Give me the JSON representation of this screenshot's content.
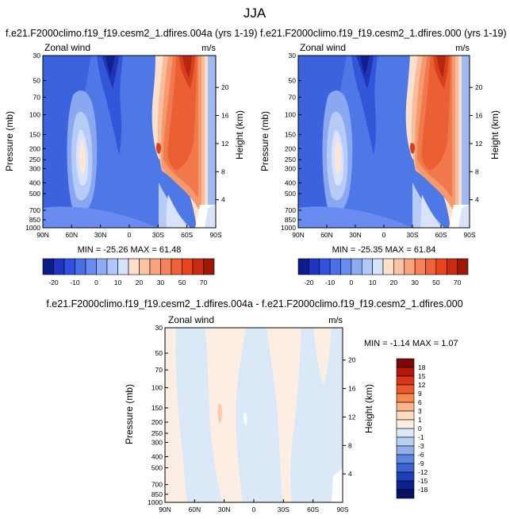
{
  "figure": {
    "title": "JJA",
    "variable": "Zonal wind",
    "units": "m/s",
    "ylabel_left": "Pressure (mb)",
    "ylabel_right": "Height (km)"
  },
  "chart_data": [
    {
      "type": "contour",
      "title": "f.e21.F2000climo.f19_f19.cesm2_1.dfires.004a (yrs 1-19)",
      "variable": "Zonal wind",
      "units": "m/s",
      "xlabel": "",
      "xticks": [
        "90N",
        "60N",
        "30N",
        "0",
        "30S",
        "60S",
        "90S"
      ],
      "xlim": [
        90,
        -90
      ],
      "yticks": [
        "30",
        "50",
        "70",
        "100",
        "150",
        "200",
        "250",
        "300",
        "400",
        "500",
        "700",
        "850",
        "1000"
      ],
      "ylim": [
        1000,
        30
      ],
      "height_ticks": [
        "4",
        "8",
        "12",
        "16",
        "20"
      ],
      "min": "-25.26",
      "max": "61.48",
      "min_label": "MIN = -25.26   MAX =  61.48",
      "levels": [
        -25,
        -20,
        -15,
        -10,
        -5,
        0,
        5,
        10,
        15,
        20,
        25,
        30,
        35,
        40,
        50,
        60,
        70
      ],
      "colorbar_labels": [
        "-20",
        "-10",
        "0",
        "10",
        "20",
        "30",
        "50",
        "70"
      ],
      "colors": [
        "#0d1a8a",
        "#1f35c2",
        "#3251e0",
        "#4a6fe8",
        "#6a8cf0",
        "#8eabf5",
        "#b3c8fa",
        "#d6e2fc",
        "#fde0cc",
        "#fbc4a6",
        "#f8a47f",
        "#f4825a",
        "#ee6138",
        "#e6461f",
        "#c92b10",
        "#a01605"
      ]
    },
    {
      "type": "contour",
      "title": "f.e21.F2000climo.f19_f19.cesm2_1.dfires.000 (yrs 1-19)",
      "variable": "Zonal wind",
      "units": "m/s",
      "xlabel": "",
      "xticks": [
        "90N",
        "60N",
        "30N",
        "0",
        "30S",
        "60S",
        "90S"
      ],
      "xlim": [
        90,
        -90
      ],
      "yticks": [
        "30",
        "50",
        "70",
        "100",
        "150",
        "200",
        "250",
        "300",
        "400",
        "500",
        "700",
        "850",
        "1000"
      ],
      "ylim": [
        1000,
        30
      ],
      "height_ticks": [
        "4",
        "8",
        "12",
        "16",
        "20"
      ],
      "min": "-25.35",
      "max": "61.84",
      "min_label": "MIN = -25.35   MAX =  61.84",
      "levels": [
        -25,
        -20,
        -15,
        -10,
        -5,
        0,
        5,
        10,
        15,
        20,
        25,
        30,
        35,
        40,
        50,
        60,
        70
      ],
      "colorbar_labels": [
        "-20",
        "-10",
        "0",
        "10",
        "20",
        "30",
        "50",
        "70"
      ],
      "colors": [
        "#0d1a8a",
        "#1f35c2",
        "#3251e0",
        "#4a6fe8",
        "#6a8cf0",
        "#8eabf5",
        "#b3c8fa",
        "#d6e2fc",
        "#fde0cc",
        "#fbc4a6",
        "#f8a47f",
        "#f4825a",
        "#ee6138",
        "#e6461f",
        "#c92b10",
        "#a01605"
      ]
    },
    {
      "type": "contour",
      "title": "f.e21.F2000climo.f19_f19.cesm2_1.dfires.004a - f.e21.F2000climo.f19_f19.cesm2_1.dfires.000",
      "variable": "Zonal wind",
      "units": "m/s",
      "xlabel": "",
      "xticks": [
        "90N",
        "60N",
        "30N",
        "0",
        "30S",
        "60S",
        "90S"
      ],
      "xlim": [
        90,
        -90
      ],
      "yticks": [
        "30",
        "50",
        "70",
        "100",
        "150",
        "200",
        "250",
        "300",
        "400",
        "500",
        "700",
        "850",
        "1000"
      ],
      "ylim": [
        1000,
        30
      ],
      "height_ticks": [
        "4",
        "8",
        "12",
        "16",
        "20"
      ],
      "min": "-1.14",
      "max": "1.07",
      "min_label": "MIN = -1.14  MAX =  1.07",
      "levels": [
        -18,
        -15,
        -12,
        -9,
        -6,
        -3,
        -1,
        0,
        1,
        3,
        6,
        9,
        12,
        15,
        18
      ],
      "colorbar_labels": [
        "18",
        "15",
        "12",
        "9",
        "6",
        "3",
        "1",
        "0",
        "-1",
        "-3",
        "-6",
        "-9",
        "-12",
        "-15",
        "-18"
      ],
      "colors": [
        "#7a0a0a",
        "#b3160c",
        "#d9341a",
        "#ef5a2d",
        "#f7884f",
        "#fbb58a",
        "#fdd9bf",
        "#fdeee3",
        "#dbe8f8",
        "#b9cff2",
        "#8fb0ea",
        "#5f86de",
        "#3a62d1",
        "#1d3fb8",
        "#0d2090",
        "#071060"
      ]
    }
  ]
}
